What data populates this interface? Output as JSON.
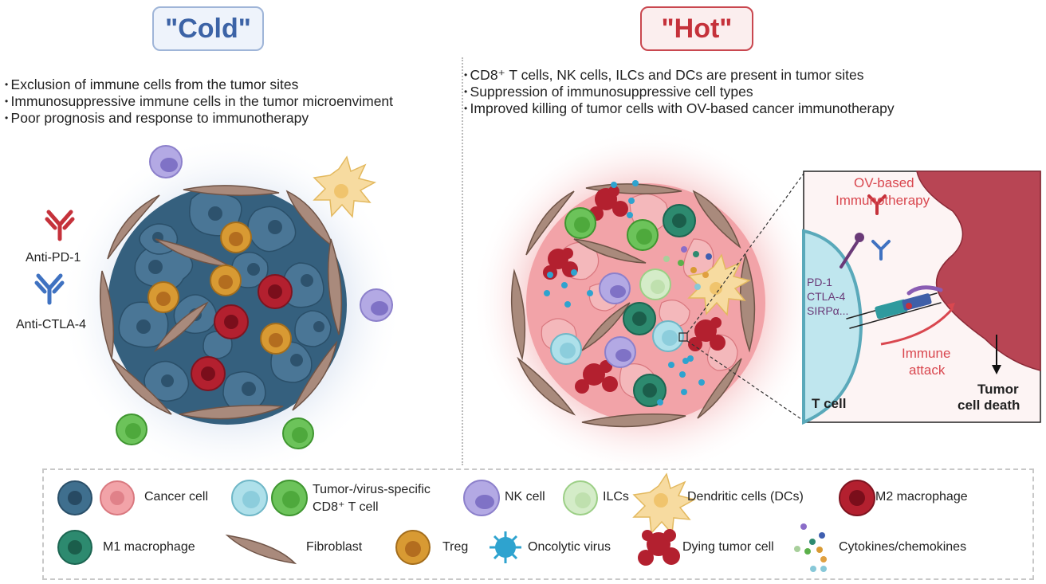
{
  "cold": {
    "title": "\"Cold\"",
    "bullets": [
      "Exclusion of immune cells from the tumor sites",
      "Immunosuppressive immune cells in the tumor microenviment",
      "Poor prognosis and response to immunotherapy"
    ],
    "antibody_1": "Anti-PD-1",
    "antibody_2": "Anti-CTLA-4"
  },
  "hot": {
    "title": "\"Hot\"",
    "bullets": [
      "CD8⁺ T cells, NK cells, ILCs and DCs are present in tumor sites",
      "Suppression of immunosuppressive cell types",
      "Improved killing of tumor cells with OV-based cancer  immunotherapy"
    ]
  },
  "inset": {
    "therapy_line1": "OV-based",
    "therapy_line2": "Immunotherapy",
    "checkpoints": [
      "PD-1",
      "CTLA-4",
      "SIRPα..."
    ],
    "attack_line1": "Immune",
    "attack_line2": "attack",
    "t_cell": "T cell",
    "death_line1": "Tumor",
    "death_line2": "cell death"
  },
  "legend": {
    "cancer_cell": "Cancer cell",
    "cd8_line1": "Tumor-/virus-specific",
    "cd8_line2": "CD8⁺ T cell",
    "nk_cell": "NK cell",
    "ilcs": "ILCs",
    "dendritic": "Dendritic cells (DCs)",
    "m2": "M2 macrophage",
    "m1": "M1 macrophage",
    "fibroblast": "Fibroblast",
    "treg": "Treg",
    "oncolytic": "Oncolytic virus",
    "dying": "Dying tumor cell",
    "cytokines": "Cytokines/chemokines"
  },
  "colors": {
    "cold_accent": "#3c63a6",
    "hot_accent": "#c5323b",
    "cancer_cold": "#3f6f8e",
    "cancer_hot": "#f2a3a8",
    "cd8": "#6cc35a",
    "cytotoxic_blue": "#aee0ea",
    "nk": "#9b8fd6",
    "ilc": "#d4ecc8",
    "dc": "#f7dba0",
    "m2": "#b3202f",
    "m1": "#2d8a6f",
    "fibroblast": "#9c7a6d",
    "treg": "#d89a33",
    "virus": "#2ea3cf"
  },
  "icons": [
    "antibody-icon",
    "cancer-cell-icon",
    "t-cell-icon",
    "nk-cell-icon",
    "ilc-icon",
    "dendritic-cell-icon",
    "macrophage-icon",
    "fibroblast-icon",
    "treg-icon",
    "virus-icon",
    "dying-cell-icon",
    "cytokine-icon"
  ]
}
